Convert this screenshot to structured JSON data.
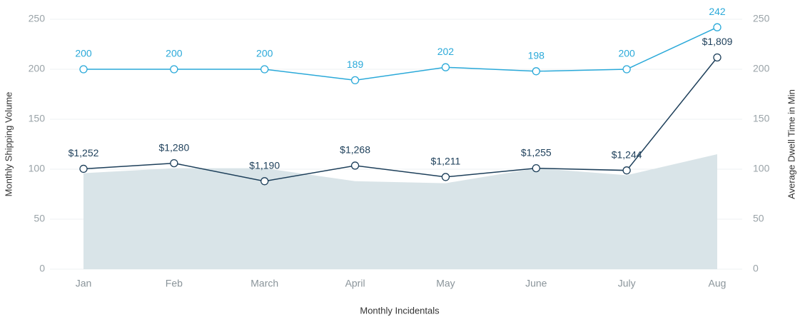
{
  "chart_data": {
    "type": "line",
    "x_label": "Monthly Incidentals",
    "y_label": "Monthly Shipping Volume",
    "y2_label": "Average Dwell Time in Min",
    "categories": [
      "Jan",
      "Feb",
      "March",
      "April",
      "May",
      "June",
      "July",
      "Aug"
    ],
    "ylim": [
      0,
      250
    ],
    "yticks": [
      0,
      50,
      100,
      150,
      200,
      250
    ],
    "y2lim": [
      0,
      250
    ],
    "y2ticks": [
      0,
      50,
      100,
      150,
      200,
      250
    ],
    "y3lim": [
      750,
      2000
    ],
    "grid": true,
    "series": [
      {
        "type": "area",
        "color": "#d9e4e8",
        "values": [
          96,
          101,
          101,
          88,
          86,
          101,
          94,
          115
        ]
      },
      {
        "type": "line",
        "axis": "y2",
        "color": "#2aa9d9",
        "values": [
          200,
          200,
          200,
          189,
          202,
          198,
          200,
          242
        ]
      },
      {
        "type": "line",
        "axis": "y3",
        "color": "#1d3f5a",
        "values": [
          1252,
          1280,
          1190,
          1268,
          1211,
          1255,
          1244,
          1809
        ],
        "value_labels": [
          "$1,252",
          "$1,280",
          "$1,190",
          "$1,268",
          "$1,211",
          "$1,255",
          "$1,244",
          "$1,809"
        ]
      }
    ]
  }
}
